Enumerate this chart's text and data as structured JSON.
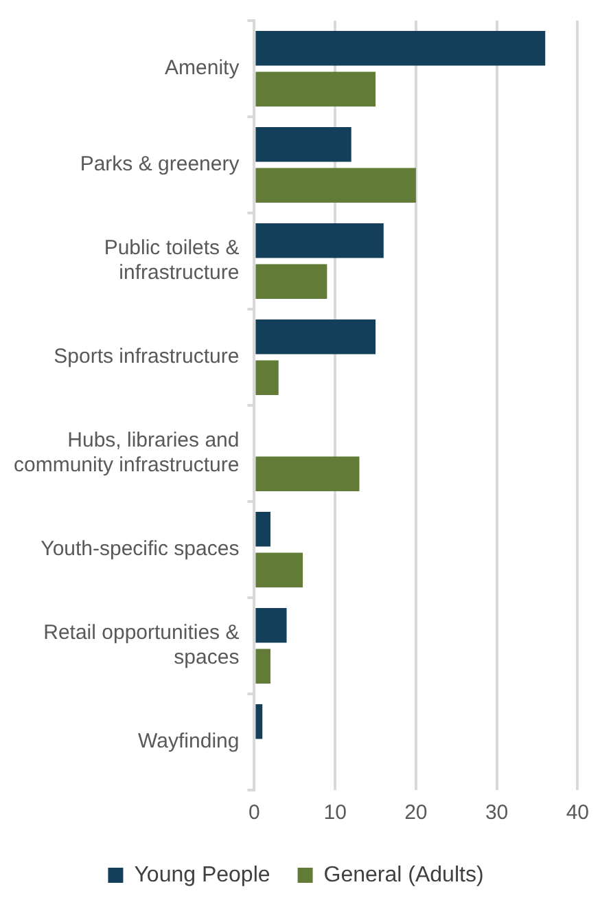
{
  "chart_data": {
    "type": "bar",
    "orientation": "horizontal",
    "categories": [
      "Amenity",
      "Parks & greenery",
      "Public toilets & infrastructure",
      "Sports infrastructure",
      "Hubs, libraries and community infrastructure",
      "Youth-specific spaces",
      "Retail opportunities & spaces",
      "Wayfinding"
    ],
    "series": [
      {
        "name": "Young People",
        "color": "#133f5a",
        "values": [
          36,
          12,
          16,
          15,
          0,
          2,
          4,
          1
        ]
      },
      {
        "name": "General (Adults)",
        "color": "#627c38",
        "values": [
          15,
          20,
          9,
          3,
          13,
          6,
          2,
          0
        ]
      }
    ],
    "xlim": [
      0,
      40
    ],
    "xticks": [
      0,
      10,
      20,
      30,
      40
    ],
    "grid": "x",
    "legend": "bottom"
  }
}
